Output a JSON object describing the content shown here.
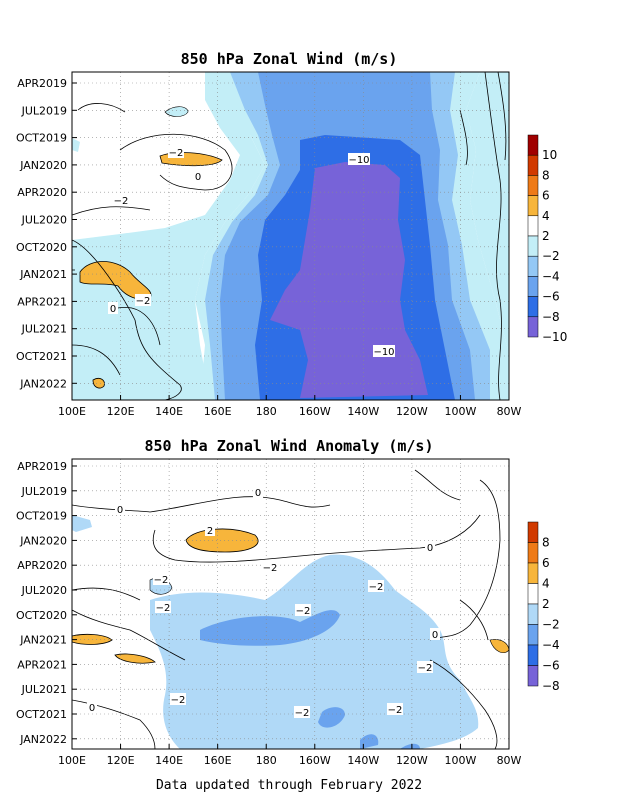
{
  "footer": "Data updated through February 2022",
  "chart_data": [
    {
      "type": "heatmap",
      "title": "850 hPa Zonal Wind (m/s)",
      "x_ticks": [
        "100E",
        "120E",
        "140E",
        "160E",
        "180",
        "160W",
        "140W",
        "120W",
        "100W",
        "80W"
      ],
      "y_ticks": [
        "APR2019",
        "JUL2019",
        "OCT2019",
        "JAN2020",
        "APR2020",
        "JUL2020",
        "OCT2020",
        "JAN2021",
        "APR2021",
        "JUL2021",
        "OCT2021",
        "JAN2022"
      ],
      "y_range": [
        "APR2019",
        "FEB2022"
      ],
      "grid": true,
      "colorbar": {
        "labels": [
          "10",
          "8",
          "6",
          "4",
          "2",
          "−2",
          "−4",
          "−6",
          "−8",
          "−10"
        ],
        "colors": [
          "#a00000",
          "#d13a00",
          "#ee7a17",
          "#f7b53b",
          "#ffffff",
          "#c3eef7",
          "#94c8f5",
          "#6aa3ee",
          "#2e6ee6",
          "#7763d8"
        ]
      },
      "contour_labels": [
        "−10",
        "−10",
        "−2",
        "−2",
        "−2",
        "0",
        "0"
      ]
    },
    {
      "type": "heatmap",
      "title": "850 hPa Zonal Wind Anomaly (m/s)",
      "x_ticks": [
        "100E",
        "120E",
        "140E",
        "160E",
        "180",
        "160W",
        "140W",
        "120W",
        "100W",
        "80W"
      ],
      "y_ticks": [
        "APR2019",
        "JUL2019",
        "OCT2019",
        "JAN2020",
        "APR2020",
        "JUL2020",
        "OCT2020",
        "JAN2021",
        "APR2021",
        "JUL2021",
        "OCT2021",
        "JAN2022"
      ],
      "y_range": [
        "APR2019",
        "FEB2022"
      ],
      "grid": true,
      "colorbar": {
        "labels": [
          "8",
          "6",
          "4",
          "2",
          "−2",
          "−4",
          "−6",
          "−8"
        ],
        "colors": [
          "#d13a00",
          "#ee7a17",
          "#f7b53b",
          "#ffffff",
          "#b0d9f7",
          "#6aa3ee",
          "#2e6ee6",
          "#7763d8"
        ]
      },
      "contour_labels": [
        "2",
        "−2",
        "−2",
        "−2",
        "−2",
        "−2",
        "−2",
        "−2",
        "−2",
        "−2",
        "0",
        "0",
        "0",
        "0",
        "0"
      ]
    }
  ]
}
